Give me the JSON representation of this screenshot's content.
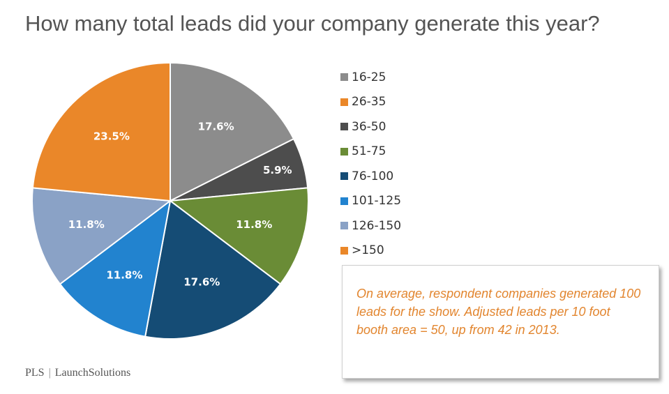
{
  "title": "How many total leads did your company generate this year?",
  "chart_data": {
    "type": "pie",
    "title": "How many total leads did your company generate this year?",
    "slices": [
      {
        "label": "16-25",
        "value": 17.6,
        "display": "17.6%",
        "color": "#8c8c8c"
      },
      {
        "label": "36-50",
        "value": 5.9,
        "display": "5.9%",
        "color": "#4d4d4d"
      },
      {
        "label": "51-75",
        "value": 11.8,
        "display": "11.8%",
        "color": "#6a8c36"
      },
      {
        "label": "76-100",
        "value": 17.6,
        "display": "17.6%",
        "color": "#154c75"
      },
      {
        "label": "101-125",
        "value": 11.8,
        "display": "11.8%",
        "color": "#2283cf"
      },
      {
        "label": "126-150",
        "value": 11.8,
        "display": "11.8%",
        "color": "#8aa2c6"
      },
      {
        "label": ">150",
        "value": 23.5,
        "display": "23.5%",
        "color": "#ea8729"
      }
    ],
    "legend": {
      "placement": "right",
      "entries": [
        {
          "label": "16-25",
          "color": "#8c8c8c"
        },
        {
          "label": "26-35",
          "color": "#ea8729"
        },
        {
          "label": "36-50",
          "color": "#4d4d4d"
        },
        {
          "label": "51-75",
          "color": "#6a8c36"
        },
        {
          "label": "76-100",
          "color": "#154c75"
        },
        {
          "label": "101-125",
          "color": "#2283cf"
        },
        {
          "label": "126-150",
          "color": "#8aa2c6"
        },
        {
          "label": ">150",
          "color": "#ea8729"
        }
      ]
    }
  },
  "note": {
    "text": "On average, respondent companies generated 100 leads for the show. Adjusted leads per 10 foot booth area = 50, up from 42 in 2013."
  },
  "footer": {
    "left": "PLS",
    "separator": "|",
    "right": "LaunchSolutions"
  }
}
